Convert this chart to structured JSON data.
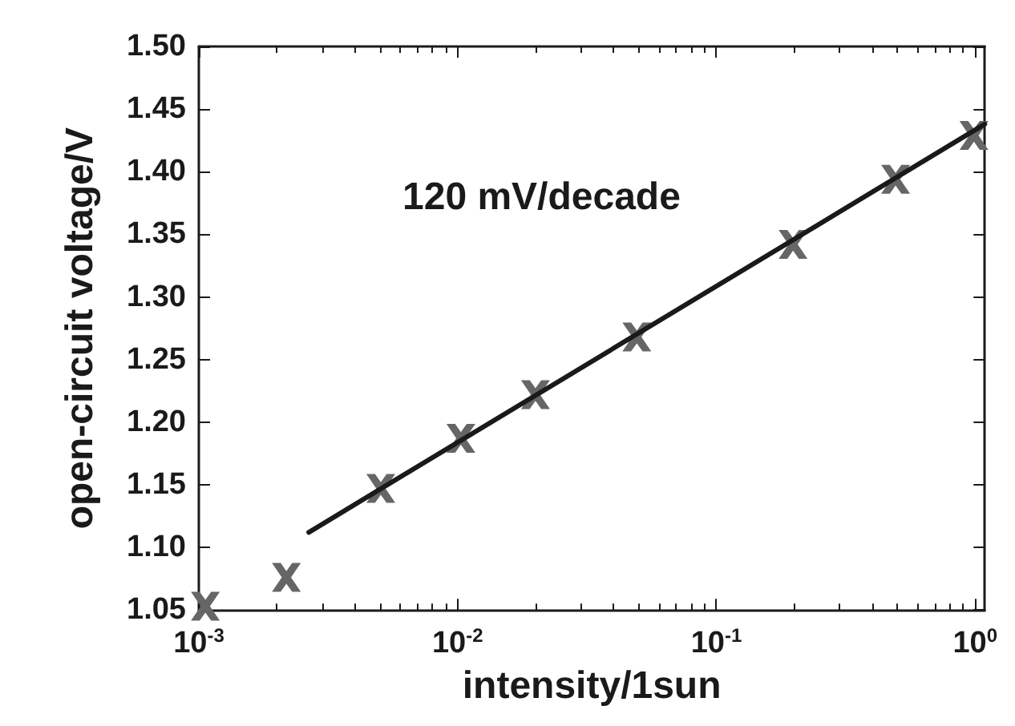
{
  "chart_data": {
    "type": "scatter",
    "xlabel": "intensity/1sun",
    "ylabel": "open-circuit voltage/V",
    "annotations": [
      "120 mV/decade"
    ],
    "x": [
      0.00106,
      0.00218,
      0.00505,
      0.0103,
      0.02,
      0.0493,
      0.198,
      0.493,
      0.99
    ],
    "series": [
      {
        "color": "#666666",
        "marker": "cross",
        "values": [
          1.053,
          1.076,
          1.147,
          1.187,
          1.222,
          1.268,
          1.342,
          1.394,
          1.429
        ]
      },
      {
        "type": "line",
        "color": "#1a1a1a",
        "marker": "none",
        "line_style": "solid",
        "x": [
          0.00266,
          1.09
        ],
        "values": [
          1.112,
          1.438
        ]
      }
    ],
    "log": "x",
    "xlim": [
      0.001,
      1.09
    ],
    "xticks": [
      {
        "value": 0.001,
        "label": "10$^{-3}$"
      },
      {
        "value": 0.01,
        "label": "10$^{-2}$"
      },
      {
        "value": 0.1,
        "label": "10$^{-1}$"
      },
      {
        "value": 1,
        "label": "10$^{0}$"
      }
    ],
    "ylim": [
      1.05,
      1.5
    ],
    "yticks": [
      1.05,
      {
        "value": 1.1,
        "label": "1.10"
      },
      1.15,
      {
        "value": 1.2,
        "label": "1.20"
      },
      1.25,
      {
        "value": 1.3,
        "label": "1.30"
      },
      1.35,
      {
        "value": 1.4,
        "label": "1.40"
      },
      1.45,
      {
        "value": 1.5,
        "label": "1.50"
      }
    ],
    "grid": false
  }
}
